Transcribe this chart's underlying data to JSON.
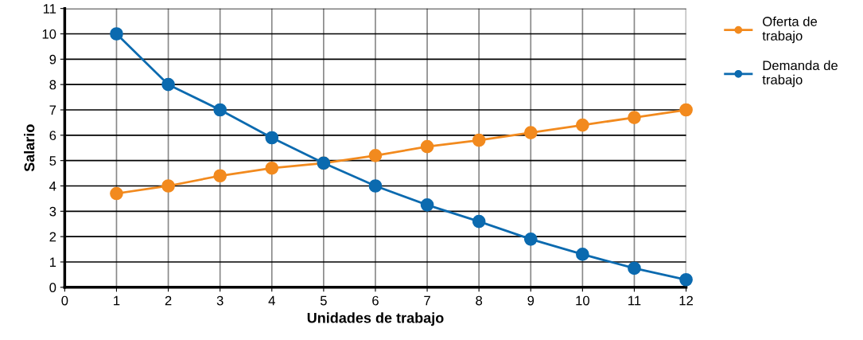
{
  "chart_data": {
    "type": "line",
    "xlabel": "Unidades de trabajo",
    "ylabel": "Salario",
    "x": [
      1,
      2,
      3,
      4,
      5,
      6,
      7,
      8,
      9,
      10,
      11,
      12
    ],
    "series": [
      {
        "name": "Oferta de\ntrabajo",
        "color": "#f28a1e",
        "values": [
          3.7,
          4.0,
          4.4,
          4.7,
          4.9,
          5.2,
          5.55,
          5.8,
          6.1,
          6.4,
          6.7,
          7.0
        ]
      },
      {
        "name": "Demanda de\ntrabajo",
        "color": "#0b6aaf",
        "values": [
          10,
          8,
          7,
          5.9,
          4.9,
          4.0,
          3.25,
          2.6,
          1.9,
          1.3,
          0.75,
          0.3
        ]
      }
    ],
    "xlim": [
      0,
      12
    ],
    "xticks": [
      0,
      1,
      2,
      3,
      4,
      5,
      6,
      7,
      8,
      9,
      10,
      11,
      12
    ],
    "ylim": [
      0,
      11
    ],
    "yticks": [
      0,
      1,
      2,
      3,
      4,
      5,
      6,
      7,
      8,
      9,
      10,
      11
    ],
    "grid": true,
    "legend": "top right",
    "marker": "circle",
    "line_style": "solid"
  }
}
